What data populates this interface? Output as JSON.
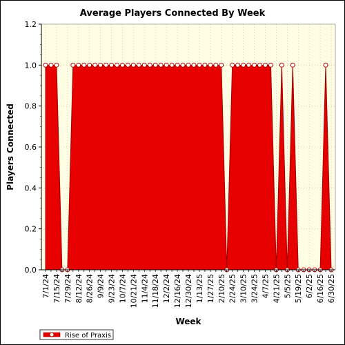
{
  "chart_data": {
    "type": "area",
    "title": "Average Players Connected By Week",
    "xlabel": "Week",
    "ylabel": "Players Connected",
    "ylim": [
      0,
      1.2
    ],
    "yticks": [
      "0.0",
      "0.2",
      "0.4",
      "0.6",
      "0.8",
      "1.0",
      "1.2"
    ],
    "grid": true,
    "legend_position": "bottom-left",
    "colors": {
      "series": "#e60000",
      "plot_bg": "#fffde3",
      "grid": "#c8c8a0"
    },
    "x_tick_labels": [
      "7/1/24",
      "7/15/24",
      "7/29/24",
      "8/12/24",
      "8/26/24",
      "9/9/24",
      "9/23/24",
      "10/7/24",
      "10/21/24",
      "11/4/24",
      "11/18/24",
      "12/2/24",
      "12/16/24",
      "12/30/24",
      "1/13/25",
      "1/27/25",
      "2/10/25",
      "2/24/25",
      "3/10/25",
      "3/24/25",
      "4/7/25",
      "4/21/25",
      "5/5/25",
      "5/19/25",
      "6/2/25",
      "6/16/25",
      "6/30/25"
    ],
    "x": [
      "7/1/24",
      "7/8/24",
      "7/15/24",
      "7/22/24",
      "7/29/24",
      "8/5/24",
      "8/12/24",
      "8/19/24",
      "8/26/24",
      "9/2/24",
      "9/9/24",
      "9/16/24",
      "9/23/24",
      "9/30/24",
      "10/7/24",
      "10/14/24",
      "10/21/24",
      "10/28/24",
      "11/4/24",
      "11/11/24",
      "11/18/24",
      "11/25/24",
      "12/2/24",
      "12/9/24",
      "12/16/24",
      "12/23/24",
      "12/30/24",
      "1/6/25",
      "1/13/25",
      "1/20/25",
      "1/27/25",
      "2/3/25",
      "2/10/25",
      "2/17/25",
      "2/24/25",
      "3/3/25",
      "3/10/25",
      "3/17/25",
      "3/24/25",
      "3/31/25",
      "4/7/25",
      "4/14/25",
      "4/21/25",
      "4/28/25",
      "5/5/25",
      "5/12/25",
      "5/19/25",
      "5/26/25",
      "6/2/25",
      "6/9/25",
      "6/16/25",
      "6/23/25",
      "6/30/25"
    ],
    "series": [
      {
        "name": "Rise of Praxis",
        "values": [
          1,
          1,
          1,
          0,
          0,
          1,
          1,
          1,
          1,
          1,
          1,
          1,
          1,
          1,
          1,
          1,
          1,
          1,
          1,
          1,
          1,
          1,
          1,
          1,
          1,
          1,
          1,
          1,
          1,
          1,
          1,
          1,
          1,
          0,
          1,
          1,
          1,
          1,
          1,
          1,
          1,
          1,
          0,
          1,
          0,
          1,
          0,
          0,
          0,
          0,
          0,
          1,
          0
        ]
      }
    ]
  }
}
